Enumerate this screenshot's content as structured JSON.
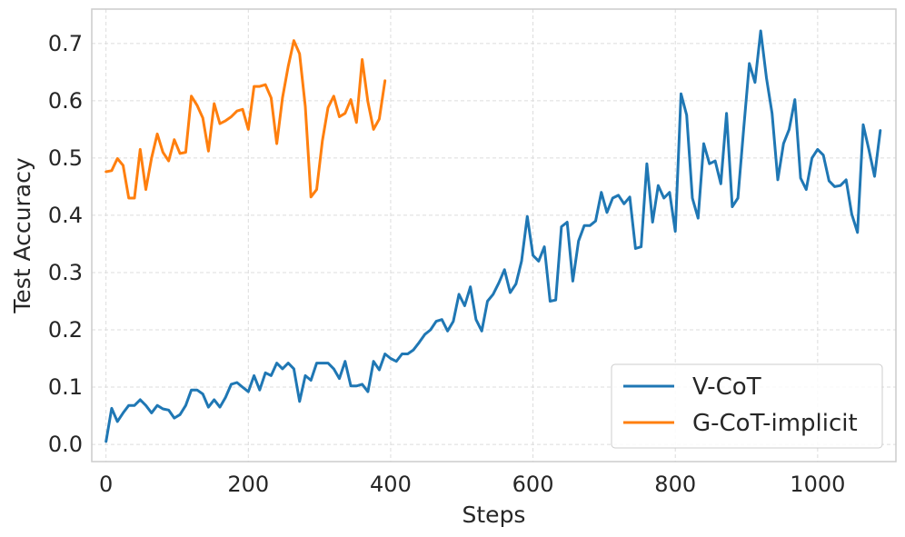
{
  "chart_data": {
    "type": "line",
    "xlabel": "Steps",
    "ylabel": "Test Accuracy",
    "xlim": [
      -20,
      1110
    ],
    "ylim": [
      -0.03,
      0.76
    ],
    "xticks": [
      0,
      200,
      400,
      600,
      800,
      1000
    ],
    "xtick_labels": [
      "0",
      "200",
      "400",
      "600",
      "800",
      "1000"
    ],
    "yticks": [
      0.0,
      0.1,
      0.2,
      0.3,
      0.4,
      0.5,
      0.6,
      0.7
    ],
    "ytick_labels": [
      "0.0",
      "0.1",
      "0.2",
      "0.3",
      "0.4",
      "0.5",
      "0.6",
      "0.7"
    ],
    "grid": true,
    "legend_position": "bottom-right",
    "series": [
      {
        "name": "V-CoT",
        "color": "#1f77b4",
        "x": [
          0,
          8,
          16,
          24,
          32,
          40,
          48,
          56,
          64,
          72,
          80,
          88,
          96,
          104,
          112,
          120,
          128,
          136,
          144,
          152,
          160,
          168,
          176,
          184,
          192,
          200,
          208,
          216,
          224,
          232,
          240,
          248,
          256,
          264,
          272,
          280,
          288,
          296,
          304,
          312,
          320,
          328,
          336,
          344,
          352,
          360,
          368,
          376,
          384,
          392,
          400,
          408,
          416,
          424,
          432,
          440,
          448,
          456,
          464,
          472,
          480,
          488,
          496,
          504,
          512,
          520,
          528,
          536,
          544,
          552,
          560,
          568,
          576,
          584,
          592,
          600,
          608,
          616,
          624,
          632,
          640,
          648,
          656,
          664,
          672,
          680,
          688,
          696,
          704,
          712,
          720,
          728,
          736,
          744,
          752,
          760,
          768,
          776,
          784,
          792,
          800,
          808,
          816,
          824,
          832,
          840,
          848,
          856,
          864,
          872,
          880,
          888,
          896,
          904,
          912,
          920,
          928,
          936,
          944,
          952,
          960,
          968,
          976,
          984,
          992,
          1000,
          1008,
          1016,
          1024,
          1032,
          1040,
          1048,
          1056,
          1064,
          1072,
          1080,
          1088
        ],
        "y": [
          0.005,
          0.063,
          0.04,
          0.055,
          0.068,
          0.068,
          0.078,
          0.068,
          0.055,
          0.068,
          0.062,
          0.06,
          0.046,
          0.052,
          0.068,
          0.095,
          0.095,
          0.088,
          0.065,
          0.078,
          0.065,
          0.082,
          0.105,
          0.108,
          0.1,
          0.092,
          0.12,
          0.095,
          0.125,
          0.12,
          0.142,
          0.132,
          0.142,
          0.132,
          0.075,
          0.12,
          0.112,
          0.142,
          0.142,
          0.142,
          0.132,
          0.115,
          0.145,
          0.102,
          0.102,
          0.105,
          0.092,
          0.145,
          0.13,
          0.158,
          0.15,
          0.145,
          0.158,
          0.158,
          0.165,
          0.178,
          0.192,
          0.2,
          0.215,
          0.218,
          0.198,
          0.215,
          0.262,
          0.242,
          0.275,
          0.218,
          0.198,
          0.25,
          0.262,
          0.282,
          0.305,
          0.265,
          0.28,
          0.32,
          0.398,
          0.33,
          0.32,
          0.345,
          0.25,
          0.252,
          0.38,
          0.388,
          0.285,
          0.355,
          0.382,
          0.382,
          0.39,
          0.44,
          0.405,
          0.43,
          0.435,
          0.42,
          0.432,
          0.342,
          0.345,
          0.49,
          0.388,
          0.452,
          0.43,
          0.44,
          0.372,
          0.612,
          0.575,
          0.43,
          0.395,
          0.525,
          0.49,
          0.495,
          0.455,
          0.578,
          0.415,
          0.43,
          0.55,
          0.665,
          0.632,
          0.722,
          0.64,
          0.578,
          0.462,
          0.525,
          0.55,
          0.602,
          0.465,
          0.445,
          0.5,
          0.515,
          0.505,
          0.46,
          0.45,
          0.452,
          0.462,
          0.402,
          0.37,
          0.558,
          0.515,
          0.468,
          0.548
        ]
      },
      {
        "name": "G-CoT-implicit",
        "color": "#ff7f0e",
        "x": [
          0,
          8,
          16,
          24,
          32,
          40,
          48,
          56,
          64,
          72,
          80,
          88,
          96,
          104,
          112,
          120,
          128,
          136,
          144,
          152,
          160,
          168,
          176,
          184,
          192,
          200,
          208,
          216,
          224,
          232,
          240,
          248,
          256,
          264,
          272,
          280,
          288,
          296,
          304,
          312,
          320,
          328,
          336,
          344,
          352,
          360,
          368,
          376,
          384,
          392
        ],
        "y": [
          0.476,
          0.478,
          0.499,
          0.487,
          0.43,
          0.43,
          0.515,
          0.445,
          0.5,
          0.542,
          0.51,
          0.495,
          0.532,
          0.508,
          0.51,
          0.608,
          0.592,
          0.57,
          0.512,
          0.595,
          0.56,
          0.565,
          0.572,
          0.582,
          0.585,
          0.55,
          0.625,
          0.625,
          0.628,
          0.605,
          0.525,
          0.605,
          0.66,
          0.705,
          0.682,
          0.59,
          0.432,
          0.445,
          0.53,
          0.588,
          0.608,
          0.572,
          0.578,
          0.602,
          0.562,
          0.672,
          0.598,
          0.55,
          0.568,
          0.635
        ]
      }
    ]
  }
}
